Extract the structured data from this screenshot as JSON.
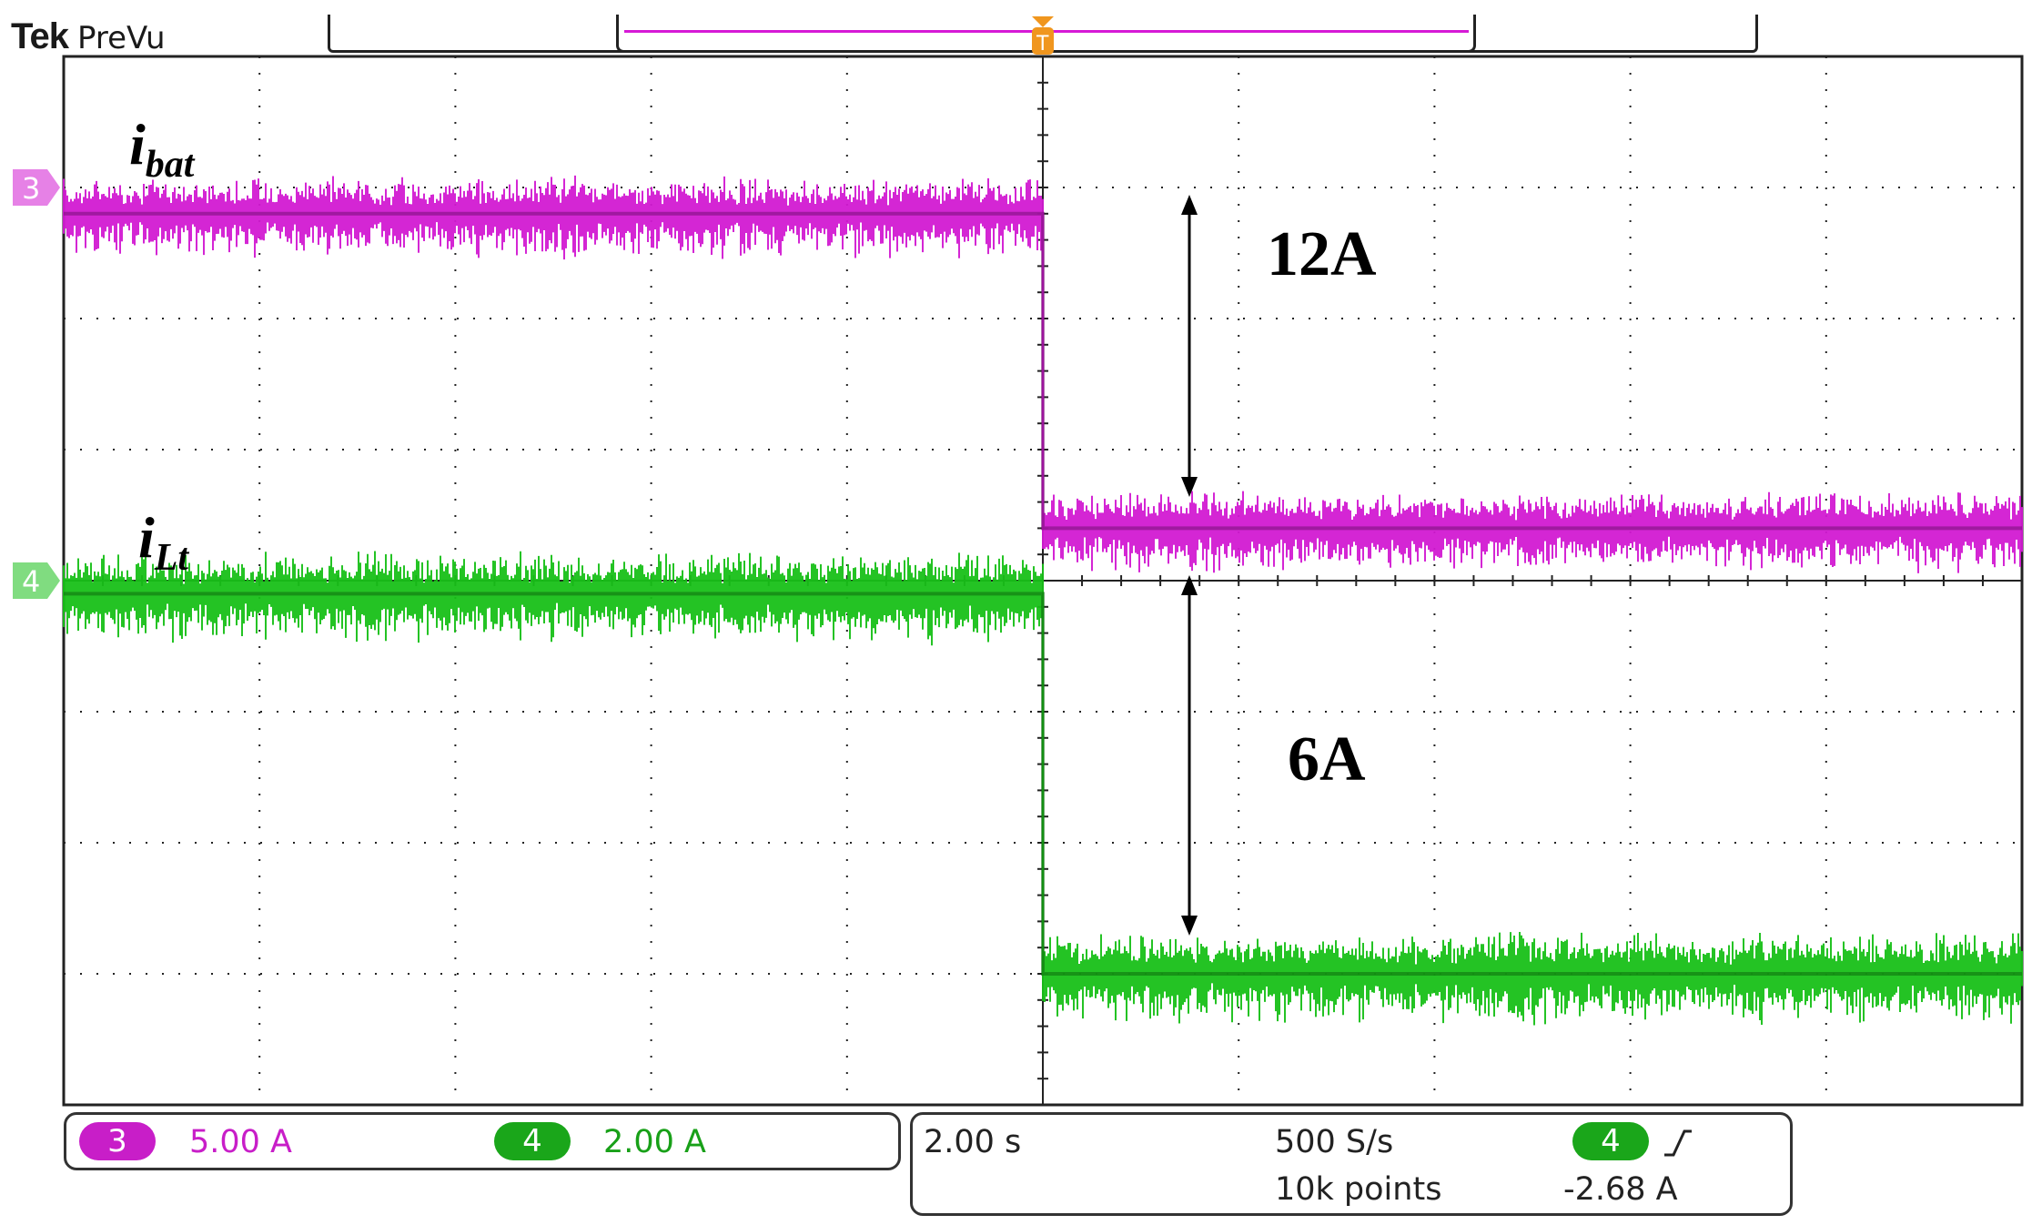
{
  "brand": {
    "logo": "Tek",
    "mode": "PreVu"
  },
  "colors": {
    "ch3": "#d21ad2",
    "ch4": "#18c018",
    "grid": "#222222",
    "annotation": "#000000",
    "trigger": "#f0961e"
  },
  "annotations": {
    "ibat_main": "i",
    "ibat_sub": "bat",
    "ilt_main": "i",
    "ilt_sub": "Lt",
    "delta_ibat": "12A",
    "delta_ilt": "6A"
  },
  "channels": [
    {
      "id": "3",
      "scale": "5.00 A",
      "color": "#c81ec8"
    },
    {
      "id": "4",
      "scale": "2.00 A",
      "color": "#1aa61a"
    }
  ],
  "horizontal": {
    "time_per_div": "2.00 s",
    "sample_rate": "500 S/s",
    "record_length": "10k points"
  },
  "trigger": {
    "source": "4",
    "slope_icon": "rising-edge-icon",
    "level": "-2.68 A",
    "marker": "T"
  },
  "chart_data": {
    "type": "line",
    "title": "",
    "xlabel": "",
    "ylabel": "",
    "grid": true,
    "x_divisions": 10,
    "y_divisions": 8,
    "xlim_div": [
      -5,
      5
    ],
    "ylim_div": [
      -4,
      4
    ],
    "series": [
      {
        "name": "i_bat",
        "channel": "3",
        "ground_div": 3.0,
        "x_div": [
          -5.0,
          0.0,
          0.0,
          5.0
        ],
        "y_div": [
          2.8,
          2.8,
          0.4,
          0.4
        ],
        "noise_div": 0.22
      },
      {
        "name": "i_Lt",
        "channel": "4",
        "ground_div": 0.0,
        "x_div": [
          -5.0,
          0.0,
          0.0,
          5.0
        ],
        "y_div": [
          -0.1,
          -0.1,
          -3.0,
          -3.0
        ],
        "noise_div": 0.25
      }
    ]
  }
}
